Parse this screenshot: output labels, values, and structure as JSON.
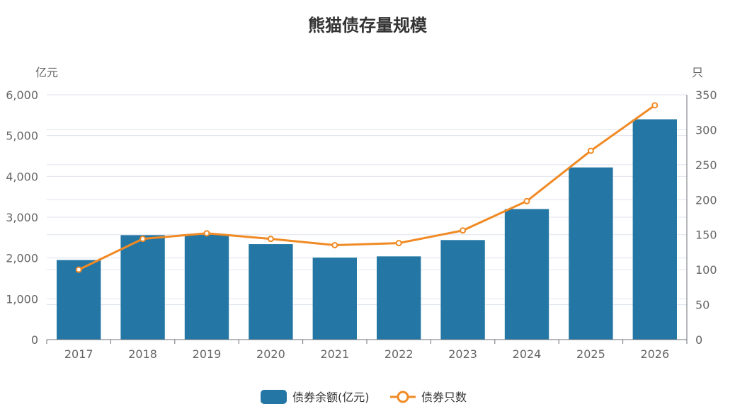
{
  "chart_data": {
    "type": "bar",
    "title": "熊猫债存量规模",
    "categories": [
      "2017",
      "2018",
      "2019",
      "2020",
      "2021",
      "2022",
      "2023",
      "2024",
      "2025",
      "2026"
    ],
    "series": [
      {
        "name": "债券余额(亿元)",
        "type": "bar",
        "axis": "left",
        "color": "#2477a4",
        "values": [
          1950,
          2560,
          2570,
          2340,
          2010,
          2040,
          2440,
          3200,
          4220,
          5400
        ]
      },
      {
        "name": "债券只数",
        "type": "line",
        "axis": "right",
        "color": "#f08a24",
        "values": [
          100,
          144,
          152,
          144,
          135,
          138,
          156,
          198,
          270,
          335
        ]
      }
    ],
    "y_left": {
      "label": "亿元",
      "ylim": [
        0,
        6000
      ],
      "ticks": [
        "0",
        "1,000",
        "2,000",
        "3,000",
        "4,000",
        "5,000",
        "6,000"
      ]
    },
    "y_right": {
      "label": "只",
      "ylim": [
        0,
        350
      ],
      "ticks": [
        "0",
        "50",
        "100",
        "150",
        "200",
        "250",
        "300",
        "350"
      ]
    },
    "grid": true,
    "legend_position": "bottom-center"
  }
}
